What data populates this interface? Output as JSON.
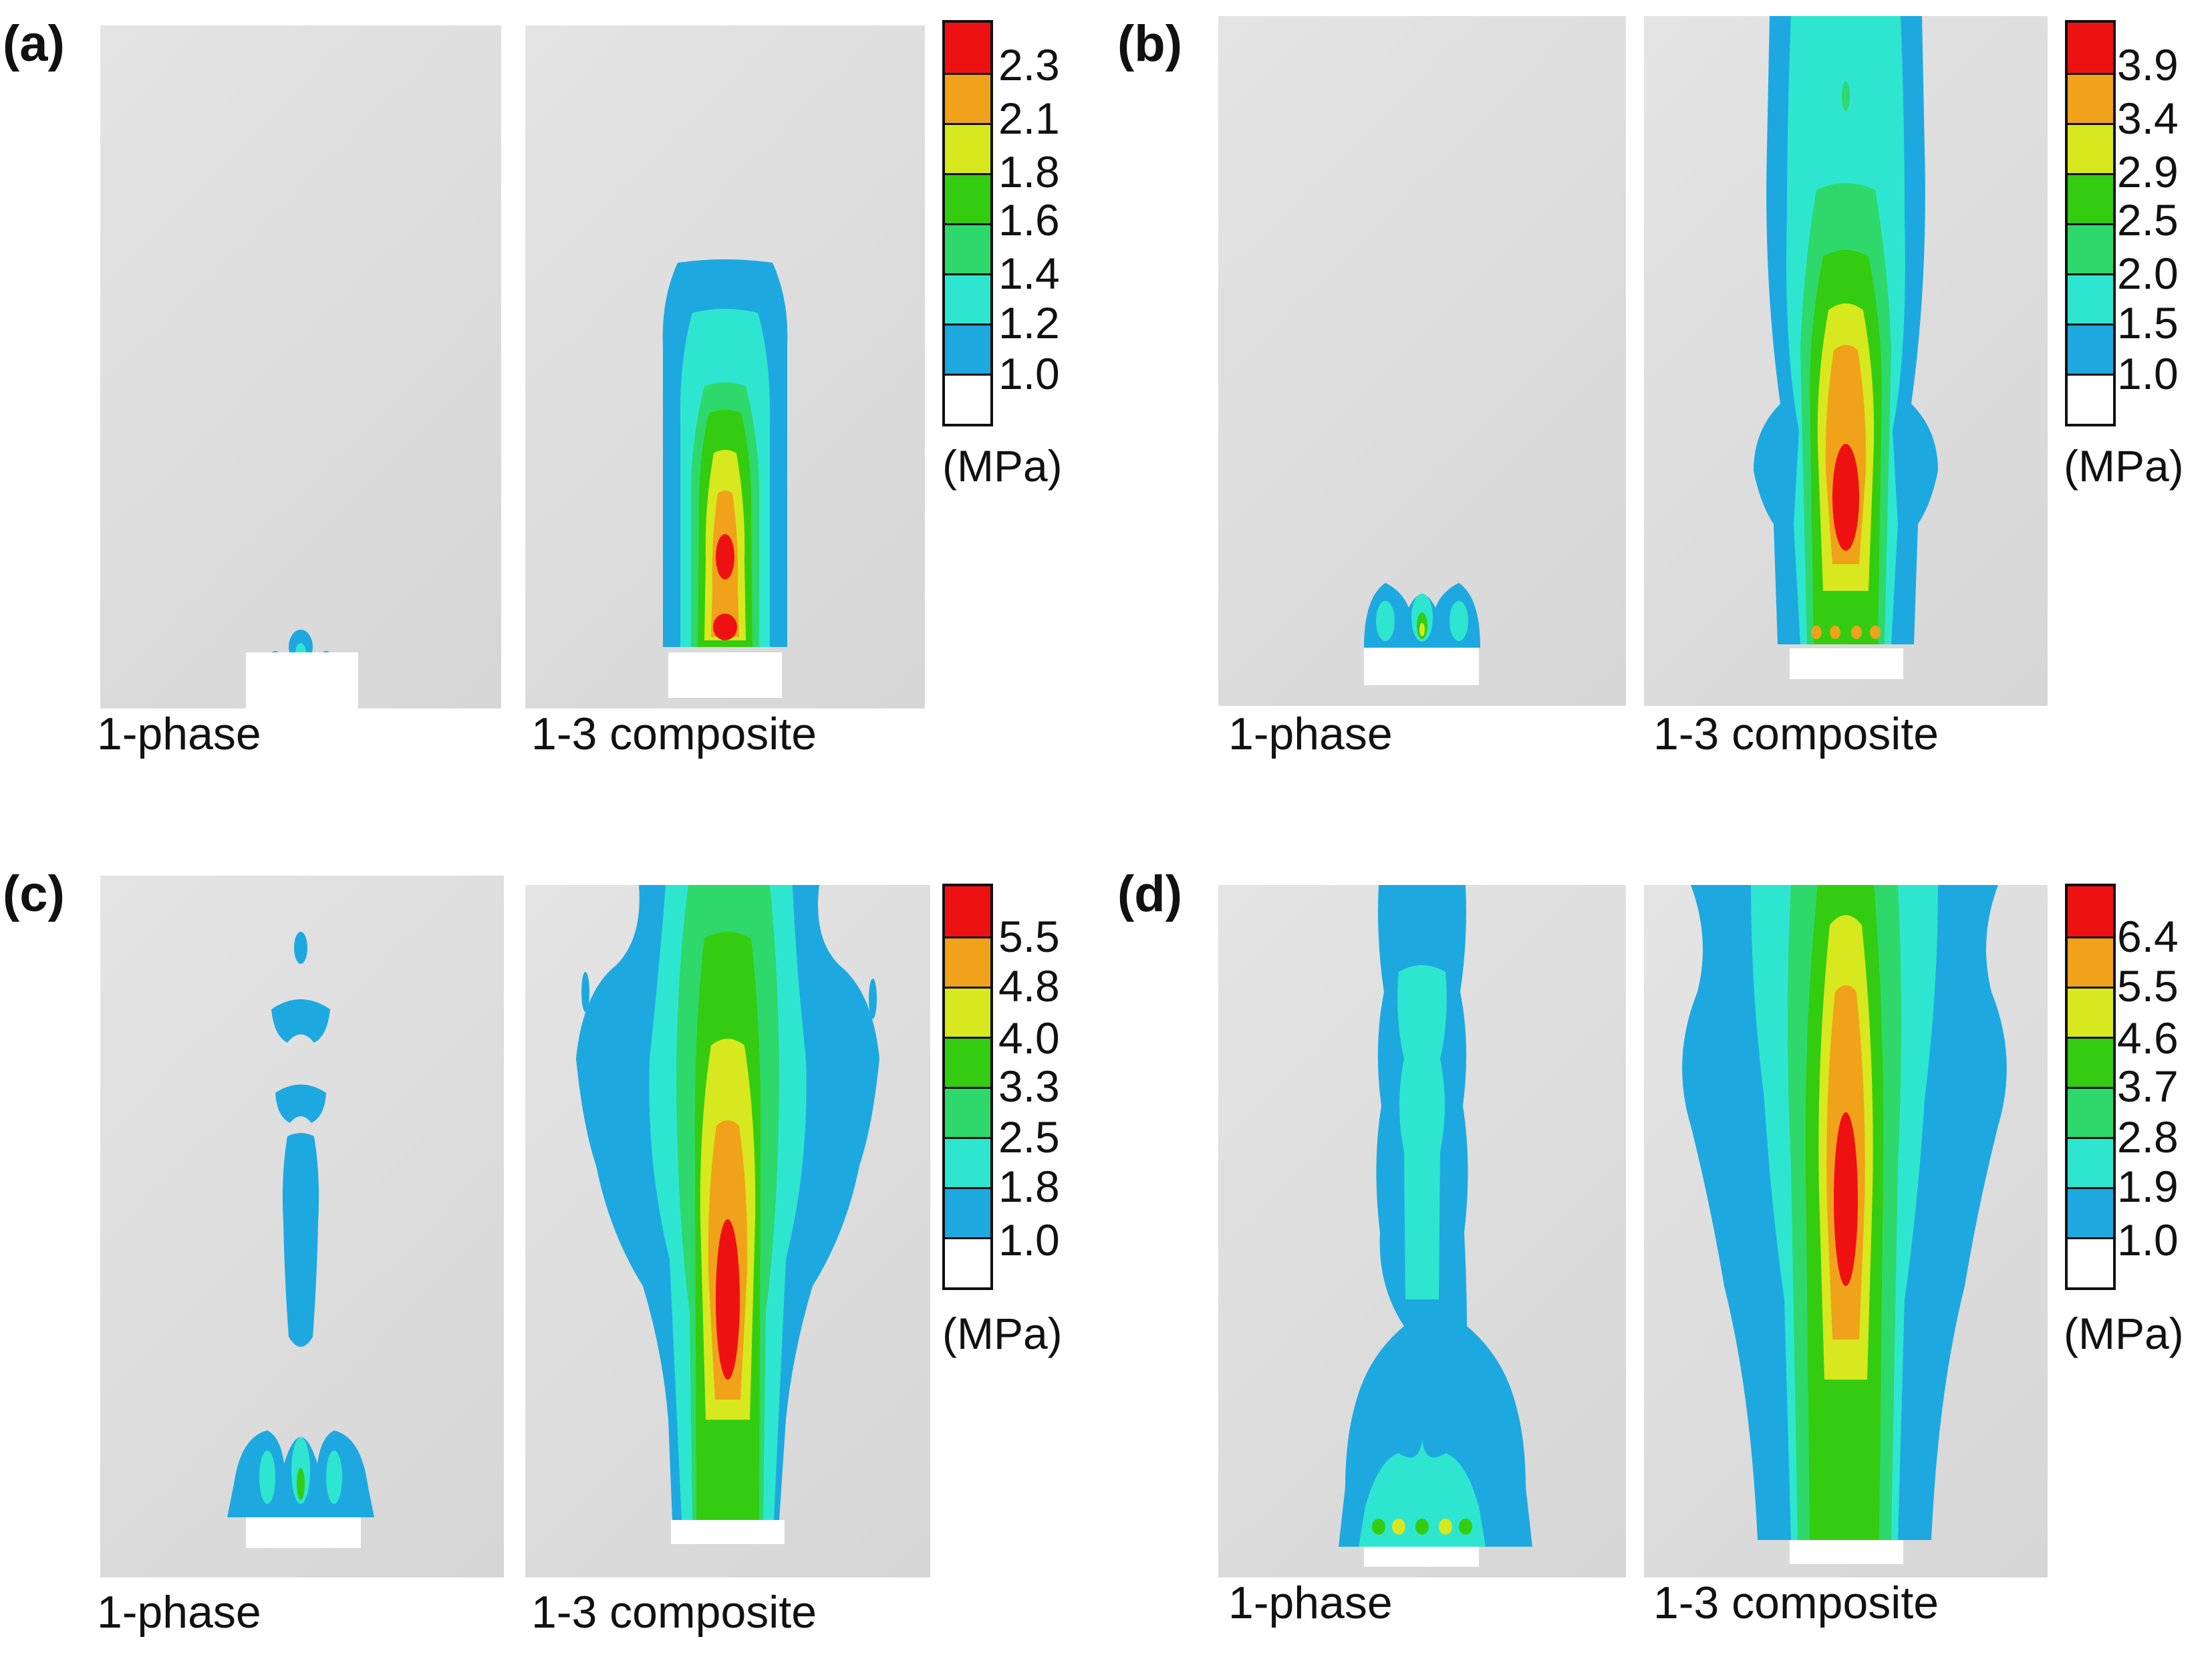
{
  "colors": {
    "white": "#ffffff",
    "blue": "#1ea8e0",
    "cyan": "#2ee6cf",
    "green_light": "#2fd86a",
    "green": "#33cc11",
    "yellow": "#d8e81e",
    "orange": "#f0a21a",
    "red": "#ee1111",
    "background": "#dcdcdc"
  },
  "panels": [
    {
      "letter": "(a)",
      "left_caption": "1-phase",
      "right_caption": "1-3 composite",
      "colorbar": {
        "ticks": [
          "2.3",
          "2.1",
          "1.8",
          "1.6",
          "1.4",
          "1.2",
          "1.0"
        ],
        "unit": "(MPa)"
      }
    },
    {
      "letter": "(b)",
      "left_caption": "1-phase",
      "right_caption": "1-3 composite",
      "colorbar": {
        "ticks": [
          "3.9",
          "3.4",
          "2.9",
          "2.5",
          "2.0",
          "1.5",
          "1.0"
        ],
        "unit": "(MPa)"
      }
    },
    {
      "letter": "(c)",
      "left_caption": "1-phase",
      "right_caption": "1-3 composite",
      "colorbar": {
        "ticks": [
          "5.5",
          "4.8",
          "4.0",
          "3.3",
          "2.5",
          "1.8",
          "1.0"
        ],
        "unit": "(MPa)"
      }
    },
    {
      "letter": "(d)",
      "left_caption": "1-phase",
      "right_caption": "1-3 composite",
      "colorbar": {
        "ticks": [
          "6.4",
          "5.5",
          "4.6",
          "3.7",
          "2.8",
          "1.9",
          "1.0"
        ],
        "unit": "(MPa)"
      }
    }
  ]
}
